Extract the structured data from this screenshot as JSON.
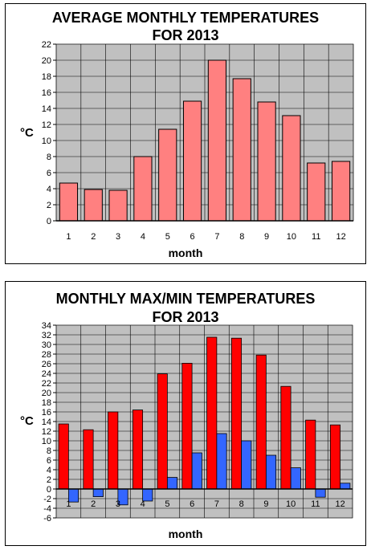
{
  "charts": [
    {
      "title_line1": "AVERAGE MONTHLY TEMPERATURES",
      "title_line2": "FOR 2013",
      "ylabel": "°C",
      "xlabel": "month"
    },
    {
      "title_line1": "MONTHLY MAX/MIN TEMPERATURES",
      "title_line2": "FOR 2013",
      "ylabel": "°C",
      "xlabel": "month"
    }
  ],
  "chart_data": [
    {
      "type": "bar",
      "title": "AVERAGE MONTHLY TEMPERATURES FOR 2013",
      "xlabel": "month",
      "ylabel": "°C",
      "categories": [
        "1",
        "2",
        "3",
        "4",
        "5",
        "6",
        "7",
        "8",
        "9",
        "10",
        "11",
        "12"
      ],
      "values": [
        4.7,
        3.9,
        3.8,
        8.0,
        11.4,
        14.9,
        20.0,
        17.7,
        14.8,
        13.1,
        7.2,
        7.4
      ],
      "ylim": [
        0,
        22
      ],
      "yticks": [
        0,
        2,
        4,
        6,
        8,
        10,
        12,
        14,
        16,
        18,
        20,
        22
      ],
      "grid": true,
      "colors": {
        "bar": "#ff8080",
        "plot_bg": "#c0c0c0"
      }
    },
    {
      "type": "bar",
      "title": "MONTHLY MAX/MIN TEMPERATURES FOR 2013",
      "xlabel": "month",
      "ylabel": "°C",
      "categories": [
        "1",
        "2",
        "3",
        "4",
        "5",
        "6",
        "7",
        "8",
        "9",
        "10",
        "11",
        "12"
      ],
      "series": [
        {
          "values": [
            13.5,
            12.3,
            16.0,
            16.4,
            23.9,
            26.1,
            31.5,
            31.3,
            27.8,
            21.3,
            14.3,
            13.3
          ]
        },
        {
          "values": [
            -2.7,
            -1.6,
            -3.3,
            -2.5,
            2.4,
            7.5,
            11.5,
            10.0,
            7.0,
            4.4,
            -1.7,
            1.2
          ]
        }
      ],
      "ylim": [
        -6,
        34
      ],
      "yticks": [
        -6,
        -4,
        -2,
        0,
        2,
        4,
        6,
        8,
        10,
        12,
        14,
        16,
        18,
        20,
        22,
        24,
        26,
        28,
        30,
        32,
        34
      ],
      "grid": true,
      "colors": {
        "max": "#ff0000",
        "min": "#3366ff",
        "plot_bg": "#c0c0c0"
      }
    }
  ]
}
